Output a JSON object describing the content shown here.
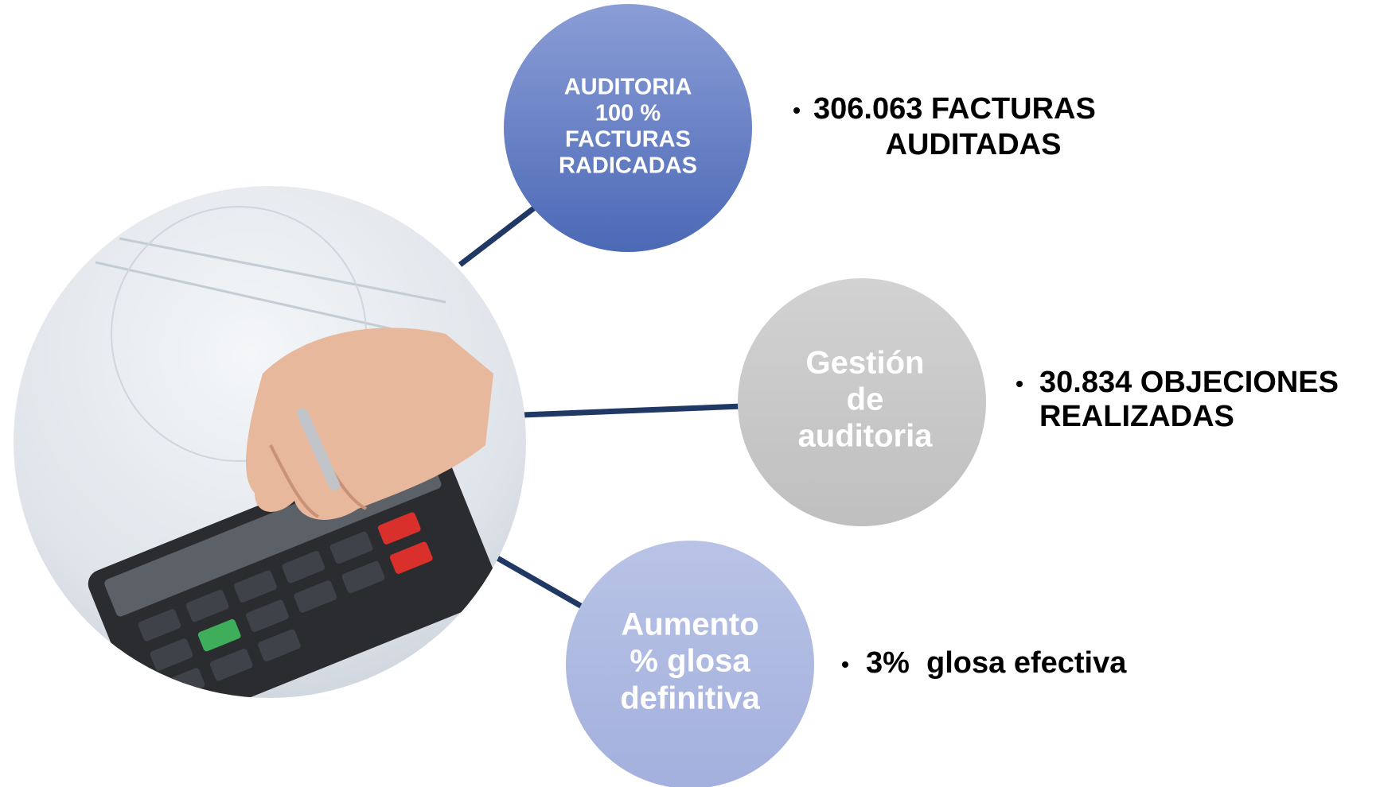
{
  "nodes": [
    {
      "lines": [
        "AUDITORIA",
        "100 %",
        "FACTURAS",
        "RADICADAS"
      ]
    },
    {
      "lines": [
        "Gestión",
        "de",
        "auditoria"
      ]
    },
    {
      "lines": [
        "Aumento",
        "% glosa",
        "definitiva"
      ]
    }
  ],
  "results": [
    {
      "lines": [
        "306.063 FACTURAS",
        "AUDITADAS"
      ]
    },
    {
      "lines": [
        "30.834 OBJECIONES",
        "REALIZADAS"
      ]
    },
    {
      "lines": [
        "3%  glosa efectiva"
      ]
    }
  ]
}
